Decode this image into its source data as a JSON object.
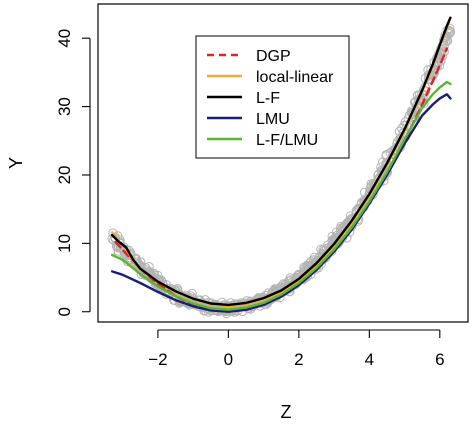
{
  "chart_data": {
    "type": "line",
    "title": "",
    "xlabel": "Z",
    "ylabel": "Y",
    "xlim": [
      -3.7,
      6.8
    ],
    "ylim": [
      -1.5,
      45
    ],
    "x_ticks": [
      -2,
      0,
      2,
      4,
      6
    ],
    "x_tick_labels": [
      "−2",
      "0",
      "2",
      "4",
      "6"
    ],
    "y_ticks": [
      0,
      10,
      20,
      30,
      40
    ],
    "y_tick_labels": [
      "0",
      "10",
      "20",
      "30",
      "40"
    ],
    "grid": false,
    "legend_position": "top-center",
    "points_color": "#b4b4b4",
    "series": [
      {
        "name": "DGP",
        "color": "#e8201e",
        "dashed": true,
        "x": [
          -3.2,
          -2.5,
          -2,
          -1.5,
          -1,
          -0.5,
          0,
          0.5,
          1,
          1.5,
          2,
          2.5,
          3,
          3.5,
          4,
          4.5,
          5,
          5.5,
          6,
          6.2
        ],
        "y": [
          10.2,
          6.2,
          4.1,
          2.3,
          1.0,
          0.3,
          0.0,
          0.3,
          1.0,
          2.3,
          4.0,
          6.3,
          9.0,
          12.3,
          16.0,
          20.3,
          25.0,
          30.3,
          36.0,
          38.5
        ]
      },
      {
        "name": "local-linear",
        "color": "#f2a93b",
        "dashed": false,
        "x": [
          -3.3,
          -3.1,
          -2.9,
          -2.7,
          -2.5,
          -2,
          -1.5,
          -1,
          -0.5,
          0,
          0.5,
          1,
          1.5,
          2,
          2.5,
          3,
          3.5,
          4,
          4.5,
          5,
          5.5,
          5.8,
          6,
          6.2,
          6.3
        ],
        "y": [
          11.6,
          10.3,
          9.2,
          7.4,
          6.2,
          4.4,
          2.9,
          1.8,
          1.1,
          0.8,
          1.1,
          1.8,
          2.9,
          4.6,
          6.9,
          9.7,
          13.1,
          17.0,
          21.5,
          26.5,
          32.2,
          36.0,
          38.8,
          41.5,
          43.0
        ]
      },
      {
        "name": "L-F",
        "color": "#000000",
        "dashed": false,
        "x": [
          -3.3,
          -3.1,
          -2.9,
          -2.7,
          -2.5,
          -2,
          -1.5,
          -1,
          -0.5,
          0,
          0.5,
          1,
          1.5,
          2,
          2.5,
          3,
          3.5,
          4,
          4.5,
          5,
          5.5,
          5.8,
          6,
          6.2,
          6.3
        ],
        "y": [
          11.2,
          10.2,
          9.4,
          7.6,
          6.3,
          4.4,
          3.0,
          1.9,
          1.2,
          1.0,
          1.3,
          2.0,
          3.1,
          4.8,
          7.1,
          9.9,
          13.3,
          17.2,
          21.7,
          26.7,
          32.4,
          36.2,
          39.0,
          41.8,
          43.0
        ]
      },
      {
        "name": "LMU",
        "color": "#1c1f6e",
        "dashed": false,
        "x": [
          -3.3,
          -3,
          -2.5,
          -2,
          -1.5,
          -1,
          -0.5,
          0,
          0.5,
          1,
          1.5,
          2,
          2.5,
          3,
          3.5,
          4,
          4.5,
          5,
          5.5,
          5.8,
          6,
          6.2,
          6.3
        ],
        "y": [
          5.9,
          5.4,
          4.2,
          2.9,
          1.7,
          0.8,
          0.2,
          0.0,
          0.3,
          1.0,
          2.2,
          3.9,
          6.1,
          8.8,
          12.0,
          15.8,
          20.0,
          24.6,
          28.7,
          30.3,
          31.2,
          31.8,
          31.2
        ]
      },
      {
        "name": "L-F/LMU",
        "color": "#5cb531",
        "dashed": false,
        "x": [
          -3.3,
          -3,
          -2.5,
          -2,
          -1.5,
          -1,
          -0.5,
          0,
          0.5,
          1,
          1.5,
          2,
          2.5,
          3,
          3.5,
          4,
          4.5,
          5,
          5.5,
          5.8,
          6,
          6.2,
          6.3
        ],
        "y": [
          8.3,
          7.6,
          5.5,
          3.7,
          2.3,
          1.2,
          0.5,
          0.3,
          0.6,
          1.3,
          2.5,
          4.2,
          6.4,
          9.1,
          12.3,
          16.1,
          20.4,
          25.2,
          29.8,
          31.8,
          32.8,
          33.6,
          33.3
        ]
      }
    ]
  }
}
